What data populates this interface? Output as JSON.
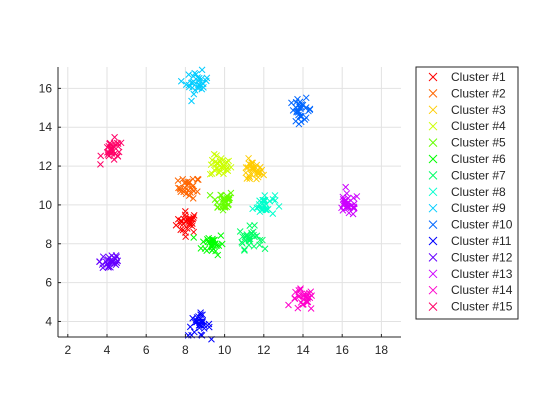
{
  "chart_data": {
    "type": "scatter",
    "marker": "x",
    "grid": true,
    "xlim": [
      1.5,
      19
    ],
    "ylim": [
      3.2,
      17.1
    ],
    "xticks": [
      2,
      4,
      6,
      8,
      10,
      12,
      14,
      16,
      18
    ],
    "yticks": [
      4,
      6,
      8,
      10,
      12,
      14,
      16
    ],
    "legend_position": "right",
    "series": [
      {
        "name": "Cluster #1",
        "color": "#ff0000",
        "center": [
          8.1,
          9.1
        ]
      },
      {
        "name": "Cluster #2",
        "color": "#ff6600",
        "center": [
          8.2,
          10.9
        ]
      },
      {
        "name": "Cluster #3",
        "color": "#ffcc00",
        "center": [
          11.4,
          11.7
        ]
      },
      {
        "name": "Cluster #4",
        "color": "#ccff00",
        "center": [
          9.8,
          12.0
        ]
      },
      {
        "name": "Cluster #5",
        "color": "#66ff00",
        "center": [
          9.9,
          10.2
        ]
      },
      {
        "name": "Cluster #6",
        "color": "#00ff00",
        "center": [
          9.4,
          8.0
        ]
      },
      {
        "name": "Cluster #7",
        "color": "#00ff66",
        "center": [
          11.3,
          8.3
        ]
      },
      {
        "name": "Cluster #8",
        "color": "#00ffcc",
        "center": [
          12.0,
          10.0
        ]
      },
      {
        "name": "Cluster #9",
        "color": "#00ccff",
        "center": [
          8.6,
          16.3
        ]
      },
      {
        "name": "Cluster #10",
        "color": "#0066ff",
        "center": [
          13.9,
          14.9
        ]
      },
      {
        "name": "Cluster #11",
        "color": "#0000ff",
        "center": [
          8.7,
          3.8
        ]
      },
      {
        "name": "Cluster #12",
        "color": "#6600ff",
        "center": [
          4.2,
          7.1
        ]
      },
      {
        "name": "Cluster #13",
        "color": "#cc00ff",
        "center": [
          16.3,
          10.0
        ]
      },
      {
        "name": "Cluster #14",
        "color": "#ff00cc",
        "center": [
          14.0,
          5.1
        ]
      },
      {
        "name": "Cluster #15",
        "color": "#ff0066",
        "center": [
          4.3,
          12.8
        ]
      }
    ]
  }
}
